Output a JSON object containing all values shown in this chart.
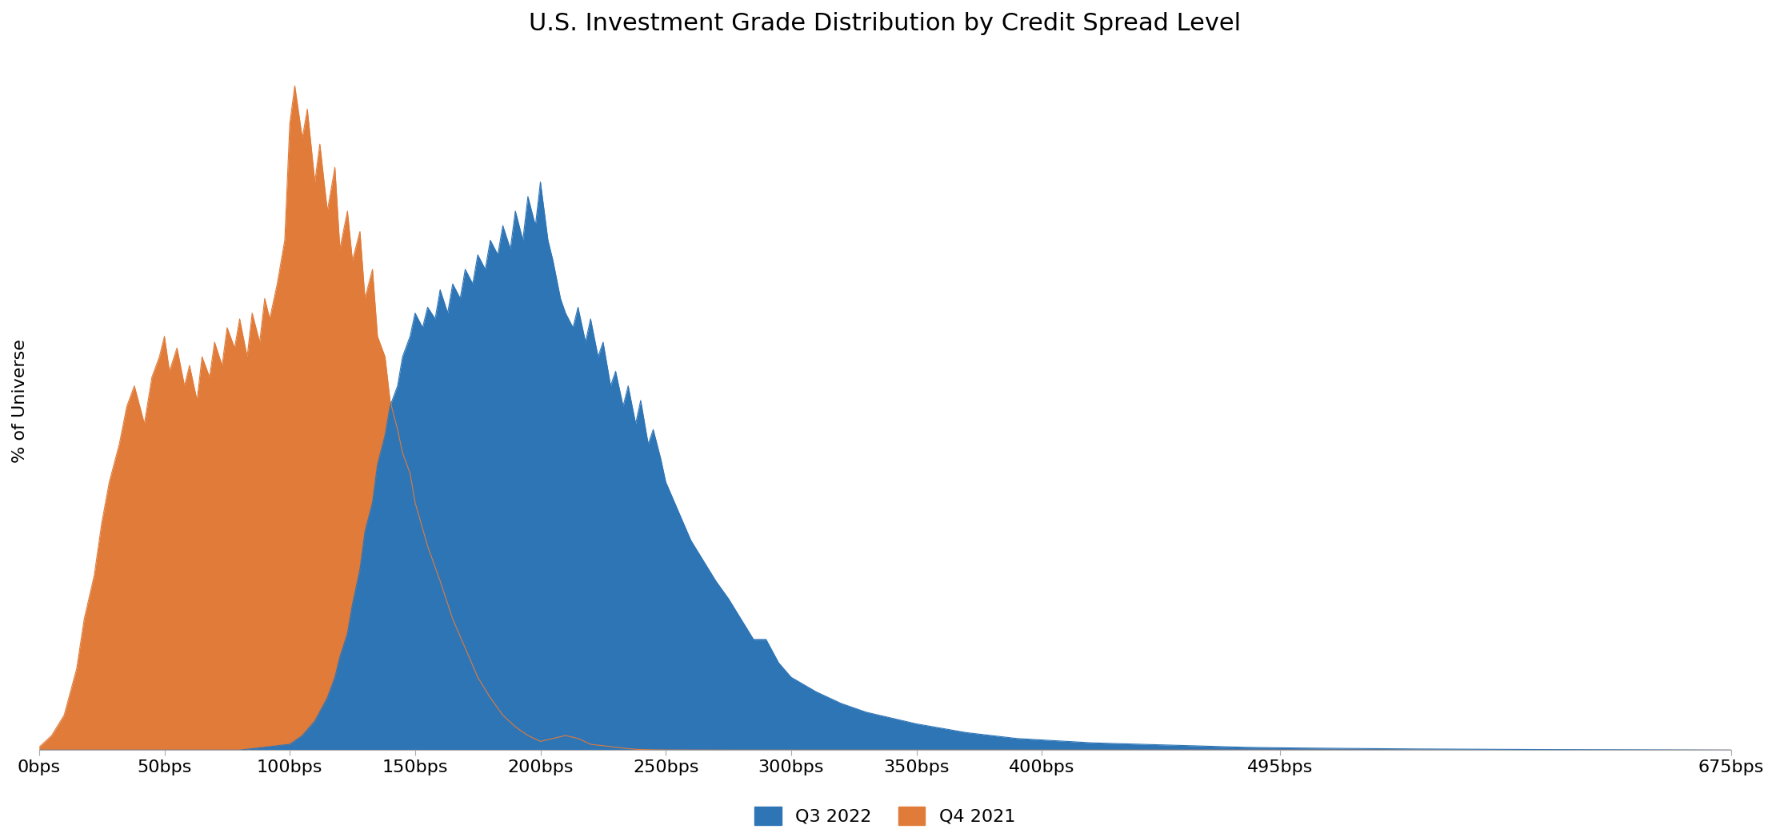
{
  "title": "U.S. Investment Grade Distribution by Credit Spread Level",
  "ylabel": "% of Universe",
  "background_color": "#ffffff",
  "title_fontsize": 22,
  "label_fontsize": 16,
  "tick_fontsize": 16,
  "legend_fontsize": 16,
  "q3_2022_color": "#2E75B6",
  "q4_2021_color": "#E07B39",
  "x_ticks_labels": [
    "0bps",
    "50bps",
    "100bps",
    "150bps",
    "200bps",
    "250bps",
    "300bps",
    "350bps",
    "400bps",
    "495bps",
    "675bps"
  ],
  "x_ticks_values": [
    0,
    50,
    100,
    150,
    200,
    250,
    300,
    350,
    400,
    495,
    675
  ],
  "q4_2021_x": [
    0,
    5,
    10,
    15,
    18,
    22,
    25,
    28,
    32,
    35,
    38,
    42,
    45,
    48,
    50,
    52,
    55,
    58,
    60,
    63,
    65,
    68,
    70,
    73,
    75,
    78,
    80,
    83,
    85,
    88,
    90,
    92,
    95,
    98,
    100,
    102,
    105,
    107,
    110,
    112,
    115,
    118,
    120,
    123,
    125,
    128,
    130,
    133,
    135,
    138,
    140,
    143,
    145,
    148,
    150,
    155,
    160,
    165,
    170,
    175,
    180,
    185,
    190,
    195,
    200,
    205,
    210,
    215,
    220,
    225,
    230,
    235,
    240,
    245,
    250,
    260,
    270,
    280,
    290,
    300,
    675
  ],
  "q4_2021_y": [
    0.1,
    0.5,
    1.2,
    2.8,
    4.5,
    6.0,
    7.8,
    9.2,
    10.5,
    11.8,
    12.5,
    11.2,
    12.8,
    13.5,
    14.2,
    13.0,
    13.8,
    12.5,
    13.2,
    12.0,
    13.5,
    12.8,
    14.0,
    13.2,
    14.5,
    13.8,
    14.8,
    13.5,
    15.0,
    14.0,
    15.5,
    14.8,
    16.0,
    17.5,
    21.5,
    22.8,
    21.0,
    22.0,
    19.5,
    20.8,
    18.5,
    20.0,
    17.2,
    18.5,
    16.8,
    17.8,
    15.5,
    16.5,
    14.2,
    13.5,
    12.0,
    11.0,
    10.2,
    9.5,
    8.5,
    7.0,
    5.8,
    4.5,
    3.5,
    2.5,
    1.8,
    1.2,
    0.8,
    0.5,
    0.3,
    0.4,
    0.5,
    0.4,
    0.2,
    0.15,
    0.1,
    0.05,
    0.02,
    0.01,
    0.005,
    0.002,
    0.001,
    0.0,
    0.0,
    0.0,
    0.0
  ],
  "q3_2022_x": [
    0,
    80,
    100,
    105,
    110,
    115,
    118,
    120,
    123,
    125,
    128,
    130,
    133,
    135,
    138,
    140,
    143,
    145,
    148,
    150,
    153,
    155,
    158,
    160,
    163,
    165,
    168,
    170,
    173,
    175,
    178,
    180,
    183,
    185,
    188,
    190,
    193,
    195,
    198,
    200,
    203,
    205,
    208,
    210,
    213,
    215,
    218,
    220,
    223,
    225,
    228,
    230,
    233,
    235,
    238,
    240,
    243,
    245,
    248,
    250,
    255,
    260,
    265,
    270,
    275,
    280,
    285,
    290,
    295,
    300,
    310,
    320,
    330,
    340,
    350,
    360,
    370,
    380,
    390,
    400,
    420,
    440,
    460,
    480,
    495,
    520,
    550,
    600,
    640,
    675
  ],
  "q3_2022_y": [
    0.0,
    0.0,
    0.2,
    0.5,
    1.0,
    1.8,
    2.5,
    3.2,
    4.0,
    5.0,
    6.2,
    7.5,
    8.5,
    9.8,
    10.8,
    11.8,
    12.5,
    13.5,
    14.2,
    15.0,
    14.5,
    15.2,
    14.8,
    15.8,
    15.0,
    16.0,
    15.5,
    16.5,
    16.0,
    17.0,
    16.5,
    17.5,
    17.0,
    18.0,
    17.2,
    18.5,
    17.5,
    19.0,
    18.0,
    19.5,
    17.5,
    16.8,
    15.5,
    15.0,
    14.5,
    15.2,
    14.0,
    14.8,
    13.5,
    14.0,
    12.5,
    13.0,
    11.8,
    12.5,
    11.2,
    12.0,
    10.5,
    11.0,
    10.0,
    9.2,
    8.2,
    7.2,
    6.5,
    5.8,
    5.2,
    4.5,
    3.8,
    3.8,
    3.0,
    2.5,
    2.0,
    1.6,
    1.3,
    1.1,
    0.9,
    0.75,
    0.6,
    0.5,
    0.4,
    0.35,
    0.25,
    0.2,
    0.15,
    0.1,
    0.08,
    0.06,
    0.04,
    0.02,
    0.01,
    0.0
  ]
}
